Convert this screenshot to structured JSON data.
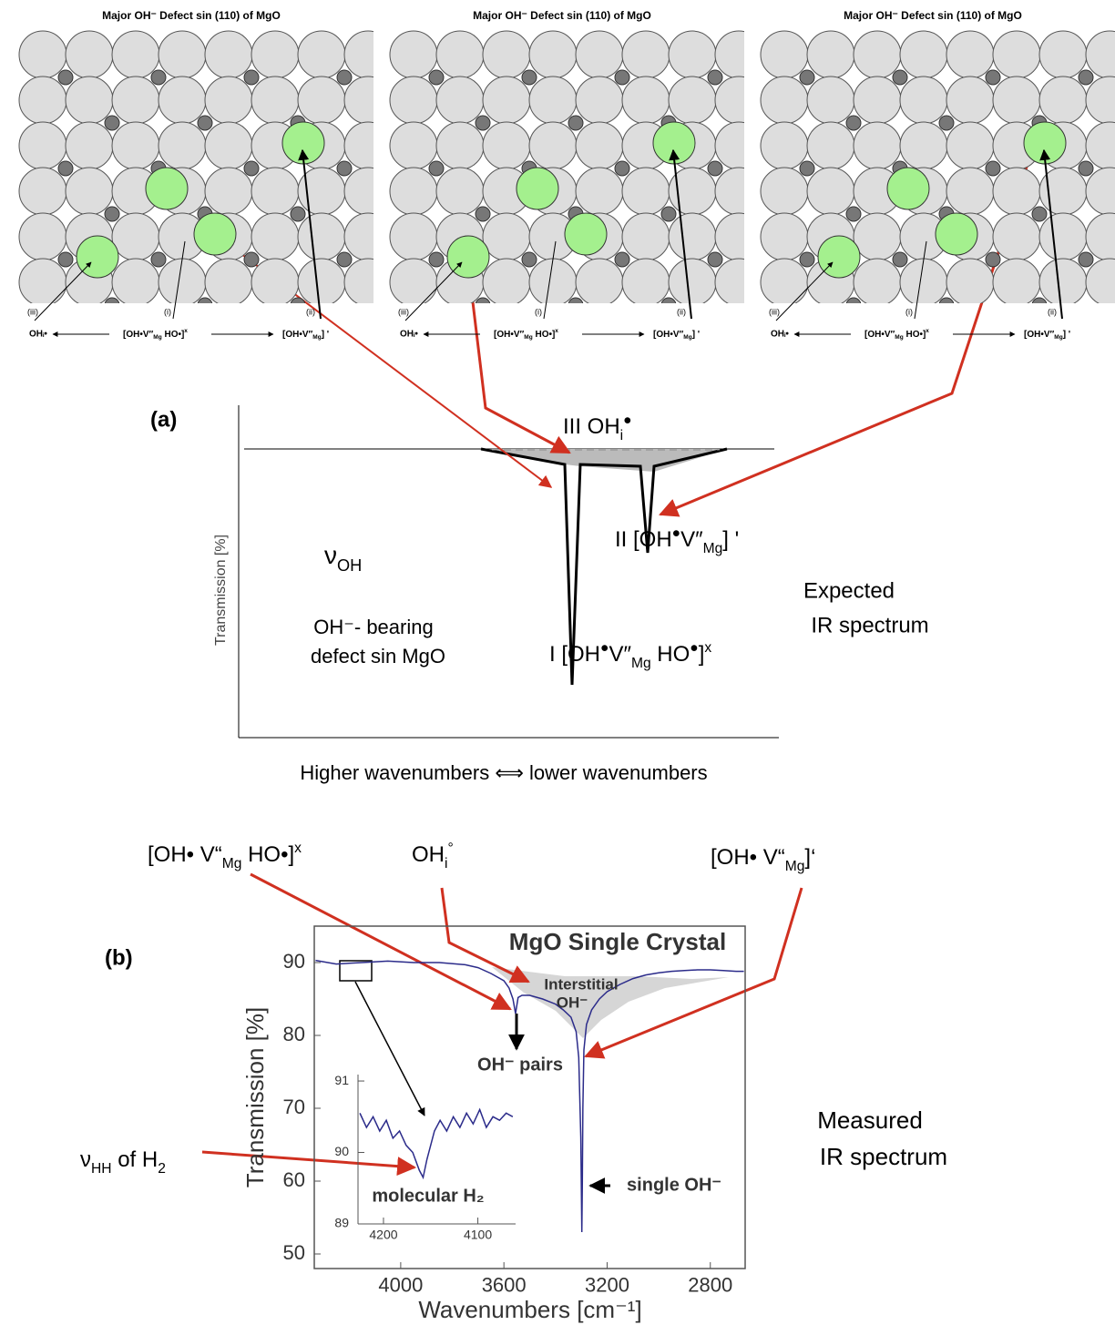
{
  "panels": [
    {
      "title": "Major OH⁻ Defect sin (110) of MgO",
      "site_labels": [
        "(iii)",
        "(i)",
        "(ii)"
      ],
      "species_iii": "OHᵢ•",
      "species_i": [
        "[OH•V″",
        "Mg",
        " HO•]",
        "x"
      ],
      "species_ii": [
        "[OH•V″",
        "Mg",
        "] '"
      ]
    },
    {
      "title": "Major OH⁻ Defect sin (110) of MgO",
      "site_labels": [
        "(iii)",
        "(i)",
        "(ii)"
      ],
      "species_iii": "OHᵢ•",
      "species_i": [
        "[OH•V″",
        "Mg",
        " HO•]",
        "x"
      ],
      "species_ii": [
        "[OH•V″",
        "Mg",
        "] '"
      ]
    },
    {
      "title": "Major OH⁻ Defect sin (110) of MgO",
      "site_labels": [
        "(iii)",
        "(i)",
        "(ii)"
      ],
      "species_iii": "OHᵢ•",
      "species_i": [
        "[OH•V″",
        "Mg",
        " HO•]",
        "x"
      ],
      "species_ii": [
        "[OH•V″",
        "Mg",
        "] '"
      ]
    }
  ],
  "panel_a": {
    "label": "(a)",
    "peak_iii": [
      "III  OH",
      "i",
      "●"
    ],
    "peak_ii": [
      "II   [OH",
      "●",
      "V″",
      "Mg",
      "] '"
    ],
    "peak_i": [
      "I   [OH",
      "●",
      "V″",
      "Mg",
      " HO",
      "●",
      "]",
      "x"
    ],
    "nu": [
      "ν",
      "OH"
    ],
    "note": [
      "OH⁻- bearing",
      "defect sin MgO"
    ],
    "caption": [
      "Expected",
      "IR spectrum"
    ],
    "y_label": "Transmission [%]",
    "x_label": "Higher wavenumbers ⟺ lower wavenumbers"
  },
  "panel_b": {
    "label": "(b)",
    "ann_pair": [
      "[OH• V“",
      "Mg",
      " HO•]",
      "x"
    ],
    "ann_interstitial": [
      "OH",
      "i",
      "°"
    ],
    "ann_single": [
      "[OH• V“",
      "Mg",
      "]‘"
    ],
    "ann_h2": [
      "ν",
      "HH",
      " of H",
      "2"
    ],
    "caption": [
      "Measured",
      "IR spectrum"
    ]
  },
  "chart_data": [
    {
      "type": "line",
      "title": "MgO Single Crystal",
      "x_label": "Wavenumbers [cm⁻¹]",
      "y_label": "Transmission [%]",
      "annotations": [
        "Interstitial",
        "OH⁻",
        "OH⁻ pairs",
        "single OH⁻"
      ],
      "x": [
        4330,
        4250,
        4150,
        4050,
        3950,
        3850,
        3750,
        3700,
        3650,
        3600,
        3580,
        3565,
        3555,
        3545,
        3530,
        3500,
        3450,
        3400,
        3370,
        3340,
        3320,
        3310,
        3302,
        3298,
        3296,
        3294,
        3290,
        3280,
        3260,
        3230,
        3200,
        3150,
        3100,
        3050,
        3000,
        2950,
        2900,
        2850,
        2800,
        2750,
        2700,
        2670
      ],
      "values": [
        90.3,
        89.8,
        90.0,
        90.2,
        90.0,
        90.0,
        89.7,
        89.3,
        88.5,
        87.5,
        86.5,
        85.0,
        83.0,
        85.2,
        85.5,
        85.5,
        85.0,
        84.3,
        83.5,
        82.5,
        80.5,
        77,
        66,
        53,
        60,
        70,
        78,
        81.5,
        83.5,
        85,
        86,
        87,
        87.8,
        88.3,
        88.6,
        88.8,
        88.9,
        89.0,
        89.0,
        88.9,
        88.8,
        88.8
      ],
      "color": "#2b2b8a",
      "xlim": [
        4335,
        2665
      ],
      "xticks": [
        4000,
        3600,
        3200,
        2800
      ],
      "ylim": [
        48,
        95
      ],
      "yticks": [
        50,
        60,
        70,
        80,
        90
      ]
    },
    {
      "type": "line",
      "annotations": [
        "molecular H₂"
      ],
      "x": [
        4225,
        4218,
        4211,
        4204,
        4197,
        4190,
        4183,
        4176,
        4169,
        4162,
        4158,
        4154,
        4150,
        4146,
        4140,
        4133,
        4126,
        4119,
        4112,
        4105,
        4098,
        4091,
        4084,
        4077,
        4070,
        4063
      ],
      "values": [
        90.55,
        90.35,
        90.5,
        90.3,
        90.45,
        90.2,
        90.3,
        90.1,
        90.0,
        89.75,
        89.65,
        89.9,
        90.1,
        90.3,
        90.45,
        90.3,
        90.5,
        90.35,
        90.55,
        90.4,
        90.6,
        90.35,
        90.5,
        90.45,
        90.55,
        90.5
      ],
      "color": "#2b2b8a",
      "xlim": [
        4227,
        4060
      ],
      "xticks": [
        4200,
        4100
      ],
      "ylim": [
        89,
        91.09
      ],
      "yticks": [
        89,
        90,
        91
      ]
    }
  ]
}
